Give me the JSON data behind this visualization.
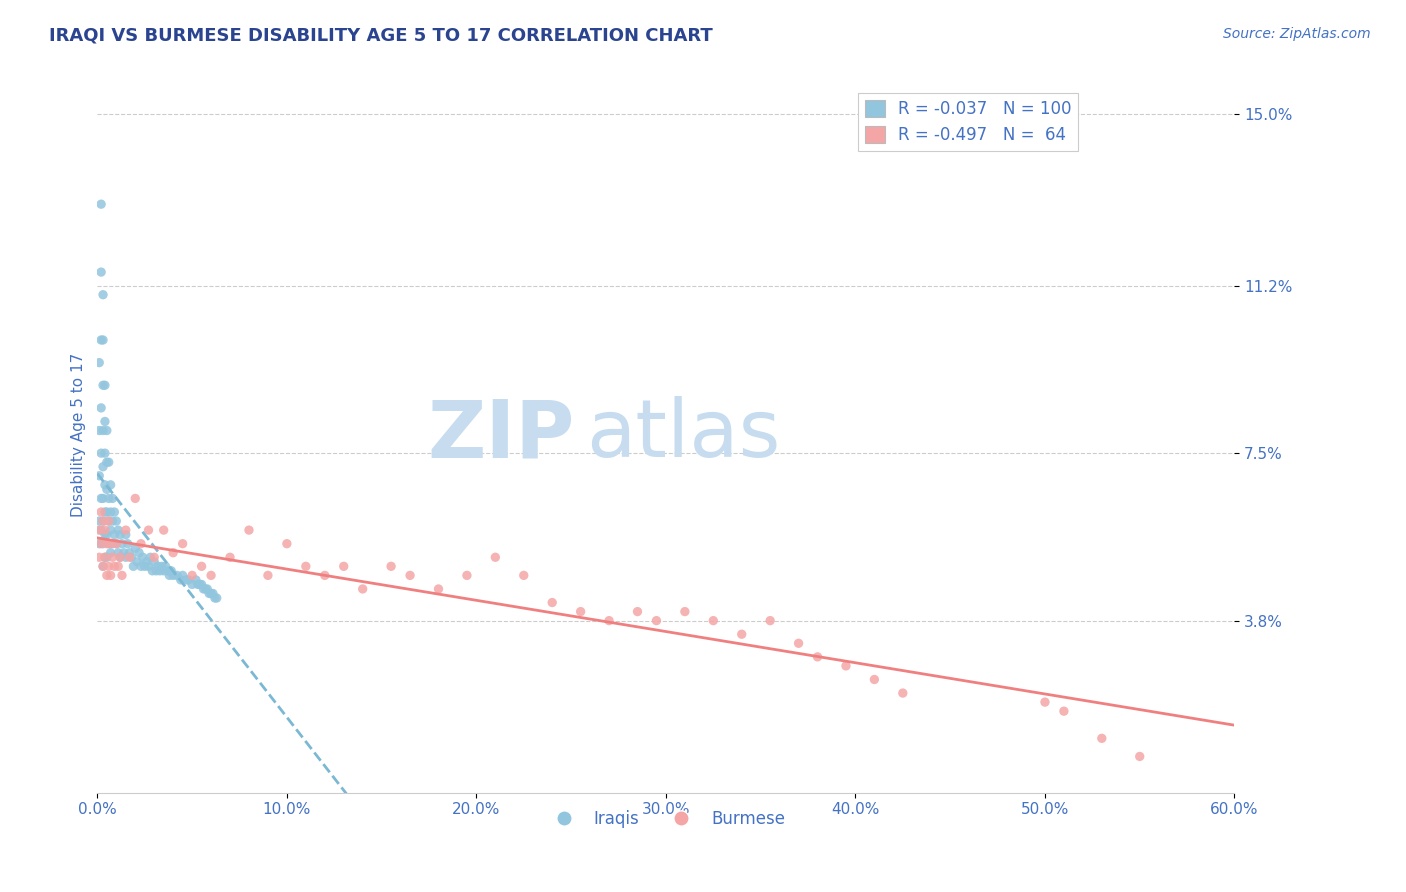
{
  "title": "IRAQI VS BURMESE DISABILITY AGE 5 TO 17 CORRELATION CHART",
  "source_text": "Source: ZipAtlas.com",
  "ylabel": "Disability Age 5 to 17",
  "xlim": [
    0.0,
    0.6
  ],
  "ylim": [
    0.0,
    0.158
  ],
  "yticks": [
    0.038,
    0.075,
    0.112,
    0.15
  ],
  "ytick_labels": [
    "3.8%",
    "7.5%",
    "11.2%",
    "15.0%"
  ],
  "xticks": [
    0.0,
    0.1,
    0.2,
    0.3,
    0.4,
    0.5,
    0.6
  ],
  "xtick_labels": [
    "0.0%",
    "10.0%",
    "20.0%",
    "30.0%",
    "40.0%",
    "50.0%",
    "60.0%"
  ],
  "legend_label1": "R = -0.037   N = 100",
  "legend_label2": "R = -0.497   N =  64",
  "color_iraqi": "#92C5DE",
  "color_burmese": "#F4A6A6",
  "color_line_iraqi": "#7BB8D4",
  "color_line_burmese": "#F08080",
  "color_title": "#2B4490",
  "color_axis_label": "#4472C4",
  "color_tick_label": "#4472C4",
  "color_gridline": "#CCCCCC",
  "color_source": "#4472C4",
  "background_color": "#FFFFFF",
  "watermark_zip": "ZIP",
  "watermark_atlas": "atlas",
  "watermark_color": "#C8DCF0",
  "title_fontsize": 13,
  "axis_label_fontsize": 11,
  "tick_fontsize": 11,
  "legend_fontsize": 12,
  "source_fontsize": 10,
  "iraqi_x": [
    0.001,
    0.001,
    0.001,
    0.001,
    0.001,
    0.002,
    0.002,
    0.002,
    0.002,
    0.002,
    0.002,
    0.002,
    0.003,
    0.003,
    0.003,
    0.003,
    0.003,
    0.003,
    0.003,
    0.003,
    0.003,
    0.004,
    0.004,
    0.004,
    0.004,
    0.004,
    0.004,
    0.004,
    0.005,
    0.005,
    0.005,
    0.005,
    0.005,
    0.005,
    0.006,
    0.006,
    0.006,
    0.006,
    0.007,
    0.007,
    0.007,
    0.007,
    0.008,
    0.008,
    0.008,
    0.009,
    0.009,
    0.01,
    0.01,
    0.011,
    0.011,
    0.012,
    0.012,
    0.013,
    0.014,
    0.015,
    0.015,
    0.016,
    0.017,
    0.018,
    0.019,
    0.02,
    0.021,
    0.022,
    0.023,
    0.024,
    0.025,
    0.026,
    0.027,
    0.028,
    0.029,
    0.03,
    0.031,
    0.032,
    0.033,
    0.034,
    0.035,
    0.036,
    0.037,
    0.038,
    0.039,
    0.04,
    0.042,
    0.044,
    0.045,
    0.047,
    0.048,
    0.05,
    0.052,
    0.053,
    0.054,
    0.055,
    0.056,
    0.057,
    0.058,
    0.059,
    0.06,
    0.061,
    0.062,
    0.063
  ],
  "iraqi_y": [
    0.095,
    0.08,
    0.07,
    0.06,
    0.055,
    0.13,
    0.115,
    0.1,
    0.085,
    0.075,
    0.065,
    0.058,
    0.11,
    0.1,
    0.09,
    0.08,
    0.072,
    0.065,
    0.06,
    0.055,
    0.05,
    0.09,
    0.082,
    0.075,
    0.068,
    0.062,
    0.057,
    0.052,
    0.08,
    0.073,
    0.067,
    0.062,
    0.057,
    0.052,
    0.073,
    0.065,
    0.06,
    0.055,
    0.068,
    0.062,
    0.058,
    0.053,
    0.065,
    0.06,
    0.055,
    0.062,
    0.057,
    0.06,
    0.055,
    0.058,
    0.053,
    0.057,
    0.052,
    0.055,
    0.053,
    0.057,
    0.052,
    0.055,
    0.053,
    0.052,
    0.05,
    0.054,
    0.051,
    0.053,
    0.05,
    0.052,
    0.05,
    0.051,
    0.05,
    0.052,
    0.049,
    0.051,
    0.049,
    0.05,
    0.049,
    0.05,
    0.049,
    0.05,
    0.049,
    0.048,
    0.049,
    0.048,
    0.048,
    0.047,
    0.048,
    0.047,
    0.047,
    0.046,
    0.047,
    0.046,
    0.046,
    0.046,
    0.045,
    0.045,
    0.045,
    0.044,
    0.044,
    0.044,
    0.043,
    0.043
  ],
  "burmese_x": [
    0.001,
    0.001,
    0.002,
    0.002,
    0.003,
    0.003,
    0.004,
    0.004,
    0.005,
    0.005,
    0.006,
    0.006,
    0.007,
    0.007,
    0.008,
    0.009,
    0.01,
    0.011,
    0.012,
    0.013,
    0.015,
    0.017,
    0.02,
    0.023,
    0.027,
    0.03,
    0.035,
    0.04,
    0.045,
    0.05,
    0.055,
    0.06,
    0.07,
    0.08,
    0.09,
    0.1,
    0.11,
    0.12,
    0.13,
    0.14,
    0.155,
    0.165,
    0.18,
    0.195,
    0.21,
    0.225,
    0.24,
    0.255,
    0.27,
    0.285,
    0.295,
    0.31,
    0.325,
    0.34,
    0.355,
    0.37,
    0.38,
    0.395,
    0.41,
    0.425,
    0.5,
    0.51,
    0.53,
    0.55
  ],
  "burmese_y": [
    0.058,
    0.052,
    0.062,
    0.055,
    0.06,
    0.05,
    0.058,
    0.052,
    0.055,
    0.048,
    0.06,
    0.05,
    0.055,
    0.048,
    0.052,
    0.05,
    0.055,
    0.05,
    0.052,
    0.048,
    0.058,
    0.052,
    0.065,
    0.055,
    0.058,
    0.052,
    0.058,
    0.053,
    0.055,
    0.048,
    0.05,
    0.048,
    0.052,
    0.058,
    0.048,
    0.055,
    0.05,
    0.048,
    0.05,
    0.045,
    0.05,
    0.048,
    0.045,
    0.048,
    0.052,
    0.048,
    0.042,
    0.04,
    0.038,
    0.04,
    0.038,
    0.04,
    0.038,
    0.035,
    0.038,
    0.033,
    0.03,
    0.028,
    0.025,
    0.022,
    0.02,
    0.018,
    0.012,
    0.008
  ]
}
